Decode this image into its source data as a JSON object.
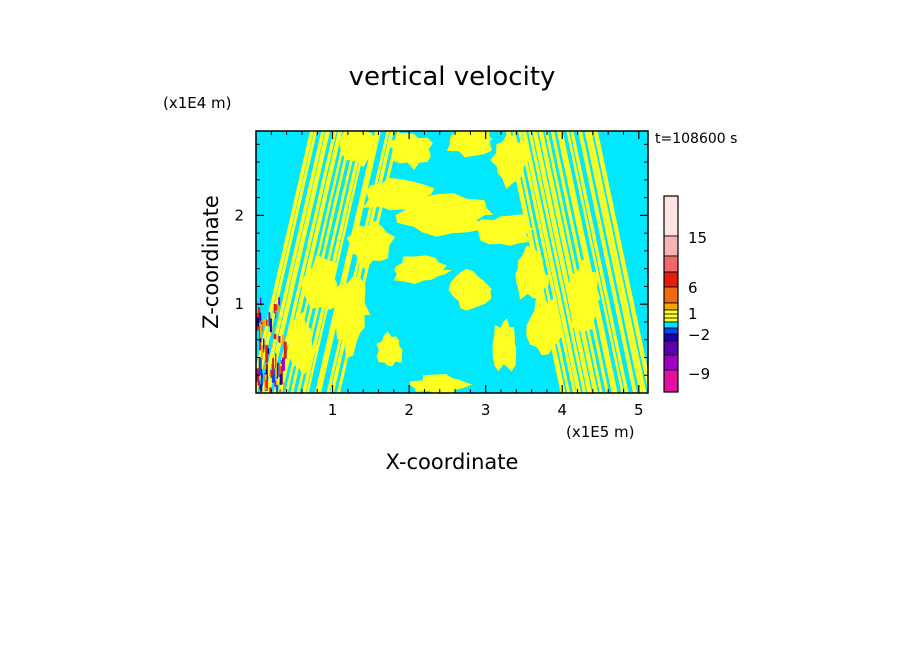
{
  "chart_data": {
    "type": "heatmap",
    "title": "vertical velocity",
    "xlabel": "X-coordinate",
    "ylabel": "Z-coordinate",
    "x_unit": "(x1E5 m)",
    "y_unit": "(x1E4 m)",
    "time_label": "t=108600 s",
    "xlim": [
      0,
      5.12
    ],
    "ylim": [
      0,
      2.95
    ],
    "x_ticks": [
      1,
      2,
      3,
      4,
      5
    ],
    "y_ticks": [
      1,
      2
    ],
    "x_tick_labels": [
      "1",
      "2",
      "3",
      "4",
      "5"
    ],
    "y_tick_labels": [
      "1",
      "2"
    ],
    "colorbar": {
      "tick_labels": [
        "15",
        "6",
        "1",
        "−2",
        "−9"
      ],
      "tick_values": [
        15,
        6,
        1,
        -2,
        -9
      ],
      "levels": [
        {
          "color": "#fde3e3"
        },
        {
          "color": "#f6b3b3"
        },
        {
          "color": "#ee6a6a"
        },
        {
          "color": "#e81c0c"
        },
        {
          "color": "#f06a10"
        },
        {
          "color": "#f5a800"
        },
        {
          "color": "#ffff22"
        },
        {
          "color": "#00e8ff"
        },
        {
          "color": "#0044ff"
        },
        {
          "color": "#1a00b0"
        },
        {
          "color": "#5a00b0"
        },
        {
          "color": "#a000c0"
        },
        {
          "color": "#e010a0"
        }
      ]
    },
    "dominant_colors": {
      "positive": "#ffff22",
      "negative": "#00e8ff"
    }
  }
}
